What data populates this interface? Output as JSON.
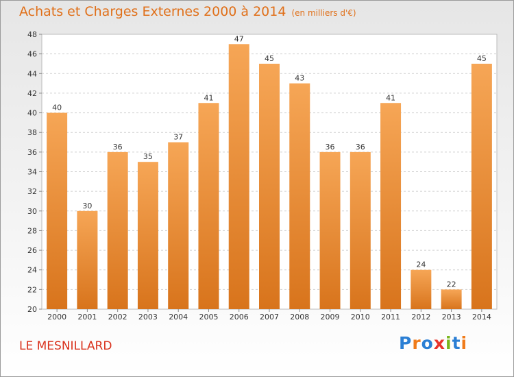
{
  "header": {
    "title": "Achats et Charges Externes 2000 à 2014",
    "unit": "(en milliers d'€)"
  },
  "footer": {
    "commune": "LE MESNILLARD",
    "brand": "Proxiti"
  },
  "colors": {
    "bar_light": "#f6a656",
    "bar_dark": "#d8741c",
    "title": "#e0701a",
    "commune": "#d9301b",
    "brand_letters": [
      "#2b7fd4",
      "#f07b1a",
      "#2b7fd4",
      "#e8342c",
      "#7ab51d",
      "#2b7fd4",
      "#f07b1a"
    ]
  },
  "chart_data": {
    "type": "bar",
    "categories": [
      "2000",
      "2001",
      "2002",
      "2003",
      "2004",
      "2005",
      "2006",
      "2007",
      "2008",
      "2009",
      "2010",
      "2011",
      "2012",
      "2013",
      "2014"
    ],
    "values": [
      40,
      30,
      36,
      35,
      37,
      41,
      47,
      45,
      43,
      36,
      36,
      41,
      24,
      22,
      45
    ],
    "title": "Achats et Charges Externes 2000 à 2014",
    "xlabel": "",
    "ylabel": "",
    "ylim": [
      20,
      48
    ],
    "yticks": [
      20,
      22,
      24,
      26,
      28,
      30,
      32,
      34,
      36,
      38,
      40,
      42,
      44,
      46,
      48
    ],
    "grid": true,
    "data_labels": true
  }
}
